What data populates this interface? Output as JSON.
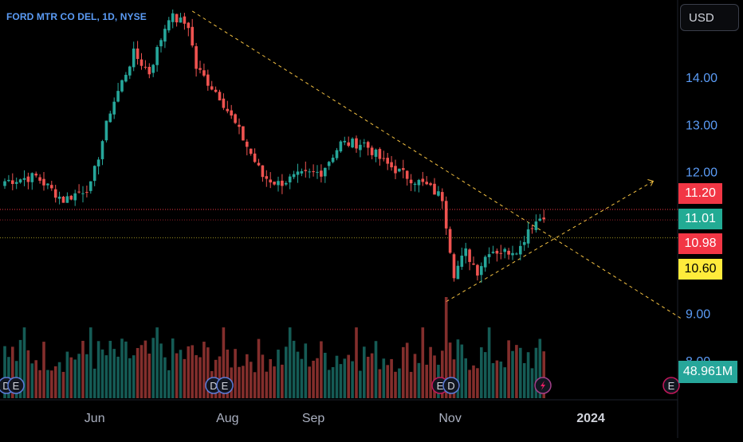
{
  "symbol": "FORD MTR CO DEL, 1D, NYSE",
  "currency": "USD",
  "colors": {
    "up": "#26a69a",
    "down": "#ef5350",
    "trend": "#f5c242",
    "axis_text": "#5b9cf6",
    "time_text": "#aab0c0",
    "tag_red": "#f23645",
    "tag_green": "#22ab94",
    "tag_yellow": "#ffeb3b"
  },
  "price_tags": [
    {
      "label": "11.20",
      "value": 11.2,
      "color": "tag_red"
    },
    {
      "label": "11.01",
      "value": 11.01,
      "color": "tag_green"
    },
    {
      "label": "10.98",
      "value": 10.98,
      "color": "tag_red"
    },
    {
      "label": "10.60",
      "value": 10.6,
      "color": "tag_yellow"
    }
  ],
  "volume_label": "48.961M",
  "event_icons": [
    {
      "label": "D",
      "kind": "dividend"
    },
    {
      "label": "E",
      "kind": "earnings"
    },
    {
      "label": "D",
      "kind": "dividend"
    },
    {
      "label": "E",
      "kind": "earnings"
    },
    {
      "label": "E",
      "kind": "earnings"
    },
    {
      "label": "D",
      "kind": "dividend"
    },
    {
      "label": "lightning-icon",
      "kind": "news"
    },
    {
      "label": "E",
      "kind": "earnings"
    }
  ],
  "chart_data": {
    "type": "candlestick",
    "title": "FORD MTR CO DEL, 1D, NYSE",
    "y_axis": {
      "ticks": [
        {
          "label": "14.00",
          "value": 14
        },
        {
          "label": "13.00",
          "value": 13
        },
        {
          "label": "12.00",
          "value": 12
        },
        {
          "label": "9.00",
          "value": 9
        },
        {
          "label": "8.00",
          "value": 8
        }
      ],
      "ylim": [
        7.85,
        15.5
      ]
    },
    "x_axis": {
      "ticks": [
        {
          "label": "Jun",
          "index": 23
        },
        {
          "label": "Aug",
          "index": 57
        },
        {
          "label": "Sep",
          "index": 79
        },
        {
          "label": "Nov",
          "index": 114
        },
        {
          "label": "2024",
          "index": 150
        }
      ]
    },
    "key_points": [
      {
        "index": 0,
        "price": 11.8
      },
      {
        "index": 8,
        "price": 11.9
      },
      {
        "index": 15,
        "price": 11.4
      },
      {
        "index": 22,
        "price": 11.7
      },
      {
        "index": 27,
        "price": 13.3
      },
      {
        "index": 33,
        "price": 14.5
      },
      {
        "index": 37,
        "price": 14.1
      },
      {
        "index": 42,
        "price": 15.3
      },
      {
        "index": 47,
        "price": 15.1
      },
      {
        "index": 49,
        "price": 14.2
      },
      {
        "index": 55,
        "price": 13.6
      },
      {
        "index": 61,
        "price": 12.7
      },
      {
        "index": 66,
        "price": 11.9
      },
      {
        "index": 70,
        "price": 11.75
      },
      {
        "index": 75,
        "price": 11.9
      },
      {
        "index": 81,
        "price": 12.0
      },
      {
        "index": 86,
        "price": 12.6
      },
      {
        "index": 92,
        "price": 12.6
      },
      {
        "index": 97,
        "price": 12.2
      },
      {
        "index": 103,
        "price": 11.9
      },
      {
        "index": 108,
        "price": 11.7
      },
      {
        "index": 112,
        "price": 11.45
      },
      {
        "index": 113,
        "price": 10.9
      },
      {
        "index": 115,
        "price": 9.85
      },
      {
        "index": 118,
        "price": 10.3
      },
      {
        "index": 121,
        "price": 9.9
      },
      {
        "index": 124,
        "price": 10.35
      },
      {
        "index": 128,
        "price": 10.3
      },
      {
        "index": 132,
        "price": 10.4
      },
      {
        "index": 134,
        "price": 10.8
      },
      {
        "index": 138,
        "price": 11.1
      }
    ],
    "last_index": 138,
    "volume": {
      "max_millions": 110
    },
    "trend_lines": [
      {
        "from": {
          "index": 48,
          "price": 15.4
        },
        "to": {
          "index": 173,
          "price": 8.9
        }
      },
      {
        "from": {
          "index": 113,
          "price": 9.25
        },
        "to": {
          "index": 166,
          "price": 11.8
        }
      }
    ]
  }
}
